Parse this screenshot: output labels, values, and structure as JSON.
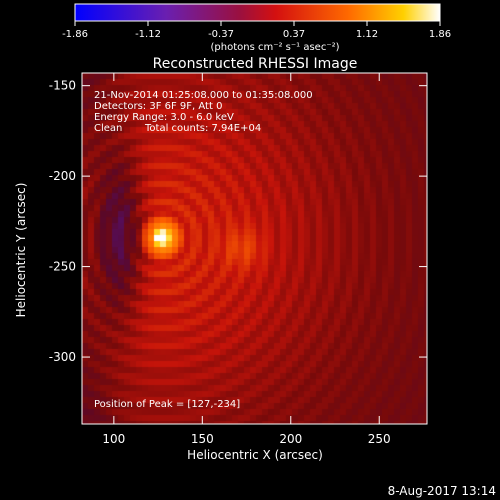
{
  "chart_data": {
    "type": "heatmap",
    "title": "Reconstructed RHESSI Image",
    "xlabel": "Heliocentric X (arcsec)",
    "ylabel": "Heliocentric Y (arcsec)",
    "xlim": [
      82,
      277
    ],
    "ylim": [
      -337,
      -143
    ],
    "xticks": [
      100,
      150,
      200,
      250
    ],
    "yticks": [
      -150,
      -200,
      -250,
      -300
    ],
    "colorbar": {
      "range": [
        -1.86,
        1.86
      ],
      "ticks": [
        "-1.86",
        "-1.12",
        "-0.37",
        "0.37",
        "1.12",
        "1.86"
      ],
      "unit_label": "(photons cm⁻² s⁻¹ asec⁻²)"
    },
    "annotations": {
      "time_range": "21-Nov-2014 01:25:08.000 to 01:35:08.000",
      "detectors": "Detectors: 3F 6F 9F, Att 0",
      "energy": "Energy Range: 3.0 - 6.0 keV",
      "clean_label": "Clean",
      "total_counts": "Total counts: 7.94E+04",
      "peak_text": "Position of Peak = [127,-234]"
    },
    "peak": {
      "x": 127,
      "y": -234,
      "value": 1.86
    },
    "secondary_source": {
      "x": 173,
      "y": -240
    },
    "negative_lobe": {
      "x": 104,
      "y": -232
    },
    "ring_spacing_arcsec": 10,
    "grid": false,
    "footer_date": "8-Aug-2017 13:14"
  }
}
